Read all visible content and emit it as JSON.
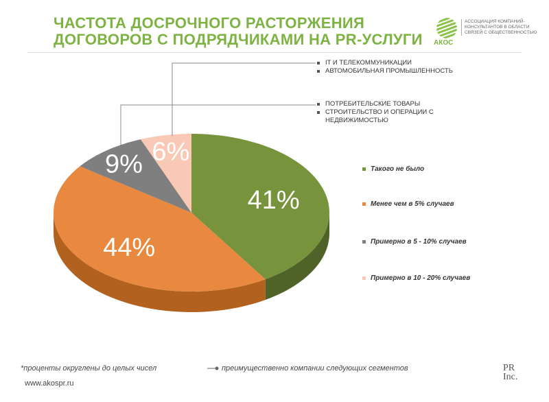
{
  "title": {
    "line1": "ЧАСТОТА ДОСРОЧНОГО РАСТОРЖЕНИЯ",
    "line2": "ДОГОВОРОВ С ПОДРЯДЧИКАМИ НА PR-УСЛУГИ"
  },
  "logo": {
    "name": "АКОС",
    "text": "АССОЦИАЦИЯ КОМПАНИЙ-КОНСУЛЬТАНТОВ В ОБЛАСТИ СВЯЗЕЙ С ОБЩЕСТВЕННОСТЬЮ"
  },
  "segments_top": [
    "IT И ТЕЛЕКОММУНИКАЦИИ",
    "АВТОМОБИЛЬНАЯ ПРОМЫШЛЕННОСТЬ"
  ],
  "segments_mid": [
    "ПОТРЕБИТЕЛЬСКИЕ ТОВАРЫ",
    "СТРОИТЕЛЬСТВО И ОПЕРАЦИИ С НЕДВИЖИМОСТЬЮ"
  ],
  "chart_data": {
    "type": "pie",
    "categories": [
      "Такого не было",
      "Менее чем в 5% случаев",
      "Примерно  в 5 - 10% случаев",
      "Примерно в 10 - 20% случаев"
    ],
    "values": [
      41,
      44,
      9,
      6
    ],
    "labels": [
      "41%",
      "44%",
      "9%",
      "6%"
    ],
    "colors": [
      "#77933c",
      "#e8893f",
      "#7f7f7f",
      "#f9c9b6"
    ],
    "side_colors": [
      "#4f6228",
      "#b3611f",
      "#555555",
      "#c9998a"
    ],
    "legend_position": "right"
  },
  "footer": {
    "note": "*проценты округлены до целых чисел",
    "legend_note": "преимущественно компании следующих сегментов",
    "url": "www.akospr.ru",
    "brand": "PR Inc."
  }
}
